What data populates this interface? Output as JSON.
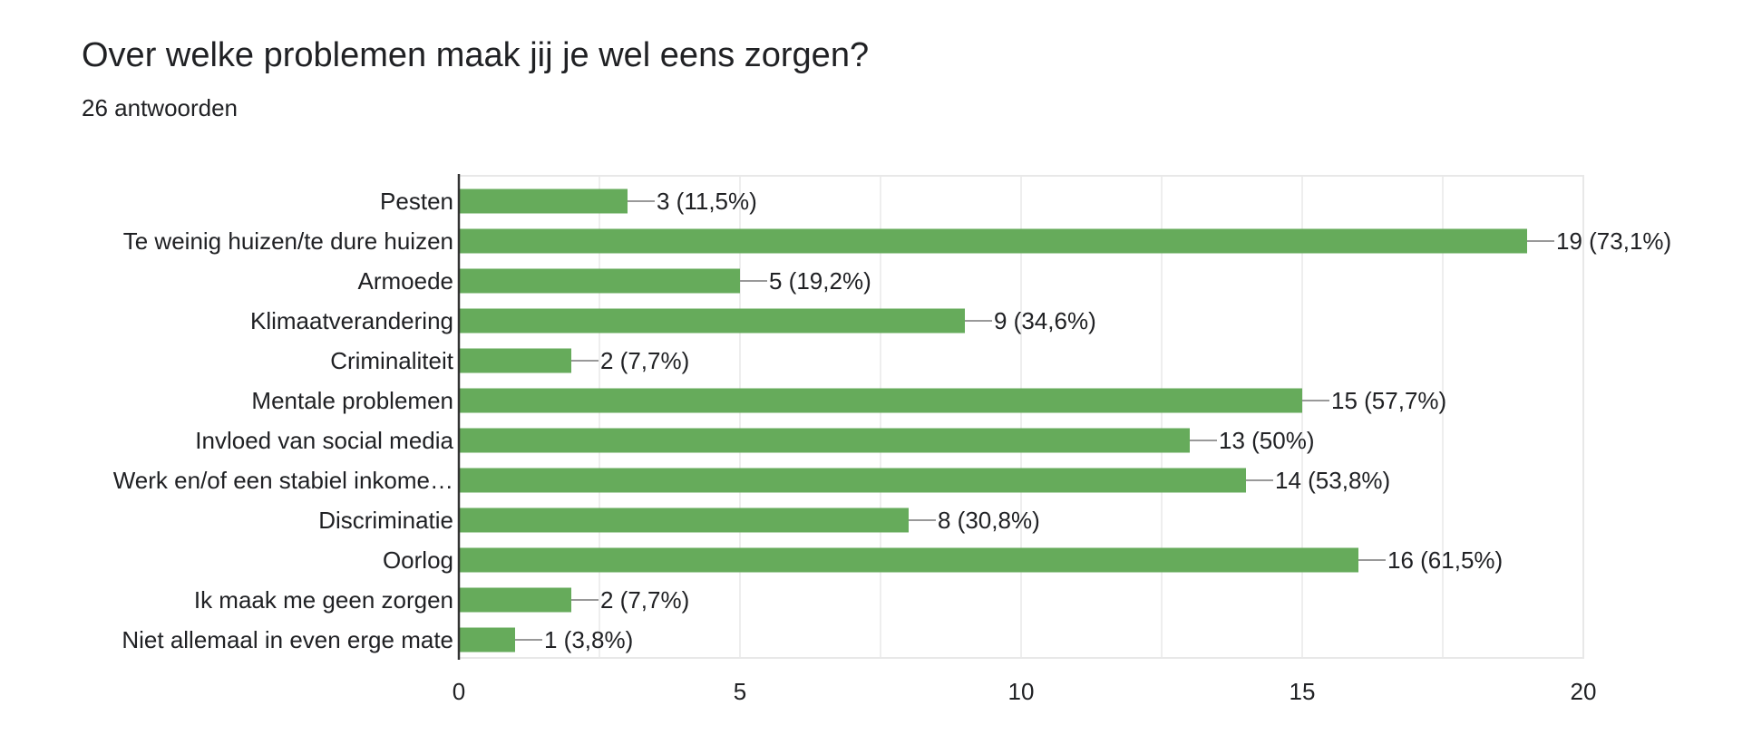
{
  "question": "Over welke problemen maak jij je wel eens zorgen?",
  "responses": "26 antwoorden",
  "colors": {
    "bar": "#66ab5b",
    "grid": "#e8e8e8",
    "axis": "#333333",
    "connector": "#999999"
  },
  "chart_data": {
    "type": "bar",
    "orientation": "horizontal",
    "title": "Over welke problemen maak jij je wel eens zorgen?",
    "subtitle": "26 antwoorden",
    "categories": [
      "Pesten",
      "Te weinig huizen/te dure huizen",
      "Armoede",
      "Klimaatverandering",
      "Criminaliteit",
      "Mentale problemen",
      "Invloed van social media",
      "Werk en/of een stabiel inkome…",
      "Discriminatie",
      "Oorlog",
      "Ik maak me geen zorgen",
      "Niet allemaal in even erge mate"
    ],
    "values": [
      3,
      19,
      5,
      9,
      2,
      15,
      13,
      14,
      8,
      16,
      2,
      1
    ],
    "data_labels": [
      "3 (11,5%)",
      "19 (73,1%)",
      "5 (19,2%)",
      "9 (34,6%)",
      "2 (7,7%)",
      "15 (57,7%)",
      "13 (50%)",
      "14 (53,8%)",
      "8 (30,8%)",
      "16 (61,5%)",
      "2 (7,7%)",
      "1 (3,8%)"
    ],
    "xlim": [
      0,
      20
    ],
    "xticks": [
      0,
      5,
      10,
      15,
      20
    ],
    "xlabel": "",
    "ylabel": "",
    "grid": true,
    "legend": "none"
  }
}
